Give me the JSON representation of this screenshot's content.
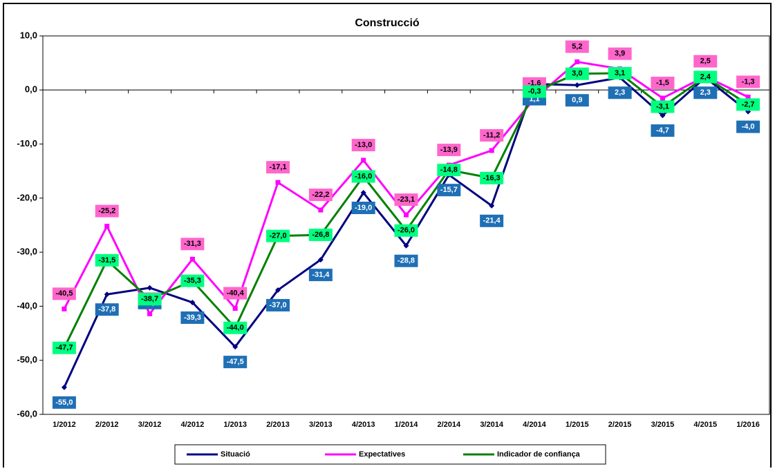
{
  "chart_data": {
    "type": "line",
    "title": "Construcció",
    "categories": [
      "1/2012",
      "2/2012",
      "3/2012",
      "4/2012",
      "1/2013",
      "2/2013",
      "3/2013",
      "4/2013",
      "1/2014",
      "2/2014",
      "3/2014",
      "4/2014",
      "1/2015",
      "2/2015",
      "3/2015",
      "4/2015",
      "1/2016"
    ],
    "series": [
      {
        "name": "Situació",
        "color": "#000080",
        "label_color": "#1f6fb5",
        "label_text": "#ffffff",
        "values": [
          -55.0,
          -37.8,
          -36.6,
          -39.3,
          -47.5,
          -37.0,
          -31.4,
          -19.0,
          -28.8,
          -15.7,
          -21.4,
          1.1,
          0.9,
          2.3,
          -4.7,
          2.3,
          -4.0
        ],
        "value_labels": [
          "-55,0",
          "-37,8",
          "-36,6",
          "-39,3",
          "-47,5",
          "-37,0",
          "-31,4",
          "-19,0",
          "-28,8",
          "-15,7",
          "-21,4",
          "1,1",
          "0,9",
          "2,3",
          "-4,7",
          "2,3",
          "-4,0"
        ]
      },
      {
        "name": "Expectatives",
        "color": "#ff00ff",
        "label_color": "#ff66cc",
        "label_text": "#000000",
        "values": [
          -40.5,
          -25.2,
          -41.4,
          -31.3,
          -40.4,
          -17.1,
          -22.2,
          -13.0,
          -23.1,
          -13.9,
          -11.2,
          -1.6,
          5.2,
          3.9,
          -1.5,
          2.5,
          -1.3
        ],
        "value_labels": [
          "-40,5",
          "-25,2",
          "-41,4",
          "-31,3",
          "-40,4",
          "-17,1",
          "-22,2",
          "-13,0",
          "-23,1",
          "-13,9",
          "-11,2",
          "-1,6",
          "5,2",
          "3,9",
          "-1,5",
          "2,5",
          "-1,3"
        ]
      },
      {
        "name": "Indicador de confiança",
        "color": "#008000",
        "label_color": "#00ff80",
        "label_text": "#000000",
        "values": [
          -47.7,
          -31.5,
          -38.7,
          -35.3,
          -44.0,
          -27.0,
          -26.8,
          -16.0,
          -26.0,
          -14.8,
          -16.3,
          -0.3,
          3.0,
          3.1,
          -3.1,
          2.4,
          -2.7
        ],
        "value_labels": [
          "-47,7",
          "-31,5",
          "-38,7",
          "-35,3",
          "-44,0",
          "-27,0",
          "-26,8",
          "-16,0",
          "-26,0",
          "-14,8",
          "-16,3",
          "-0,3",
          "3,0",
          "3,1",
          "-3,1",
          "2,4",
          "-2,7"
        ]
      }
    ],
    "ylim": [
      -60,
      10
    ],
    "yticks": [
      {
        "value": -60,
        "label": "-60,0"
      },
      {
        "value": -50,
        "label": "-50,0"
      },
      {
        "value": -40,
        "label": "-40,0"
      },
      {
        "value": -30,
        "label": "-30,0"
      },
      {
        "value": -20,
        "label": "-20,0"
      },
      {
        "value": -10,
        "label": "-10,0"
      },
      {
        "value": 0,
        "label": "0,0"
      },
      {
        "value": 10,
        "label": "10,0"
      }
    ],
    "legend": "bottom"
  }
}
